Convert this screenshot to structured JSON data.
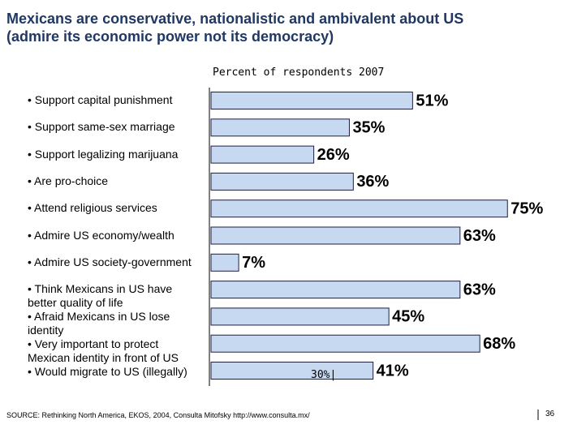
{
  "chart_data": {
    "type": "bar",
    "orientation": "horizontal",
    "title": [
      "Mexicans are conservative, nationalistic and ambivalent about US",
      "(admire its economic power not its democracy)"
    ],
    "subtitle": "Percent of respondents  2007",
    "categories": [
      "• Support capital punishment",
      "• Support same-sex marriage",
      "• Support legalizing marijuana",
      "• Are pro-choice",
      "• Attend religious services",
      "• Admire US economy/wealth",
      "• Admire US society-government",
      "• Think Mexicans in US have better quality of life",
      "• Afraid Mexicans in US lose identity",
      "• Very important to protect Mexican identity in front of US",
      "• Would migrate to US (illegally)"
    ],
    "values": [
      51,
      35,
      26,
      36,
      75,
      63,
      7,
      63,
      45,
      68,
      41
    ],
    "value_labels": [
      "51%",
      "35%",
      "26%",
      "36%",
      "75%",
      "63%",
      "7%",
      "63%",
      "45%",
      "68%",
      "41%"
    ],
    "color": "#c6d9f1",
    "annotation": "30%|"
  },
  "source": "SOURCE: Rethinking North America, EKOS, 2004, Consulta Mitofsky http://www.consulta.mx/",
  "page_number": "36"
}
